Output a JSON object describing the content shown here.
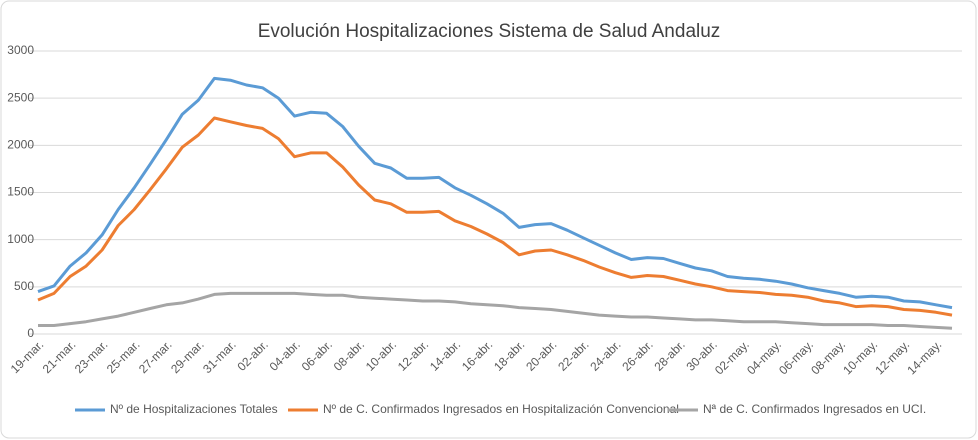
{
  "chart_data": {
    "type": "line",
    "title": "Evolución Hospitalizaciones Sistema de Salud Andaluz",
    "categories": [
      "19-mar.",
      null,
      "21-mar.",
      null,
      "23-mar.",
      null,
      "25-mar.",
      null,
      "27-mar.",
      null,
      "29-mar.",
      null,
      "31-mar.",
      null,
      "02-abr.",
      null,
      "04-abr.",
      null,
      "06-abr.",
      null,
      "08-abr.",
      null,
      "10-abr.",
      null,
      "12-abr.",
      null,
      "14-abr.",
      null,
      "16-abr.",
      null,
      "18-abr.",
      null,
      "20-abr.",
      null,
      "22-abr.",
      null,
      "24-abr.",
      null,
      "26-abr.",
      null,
      "28-abr.",
      null,
      "30-abr.",
      null,
      "02-may.",
      null,
      "04-may.",
      null,
      "06-may.",
      null,
      "08-may.",
      null,
      "10-may.",
      null,
      "12-may.",
      null,
      "14-may.",
      null
    ],
    "series": [
      {
        "name": "Nº de Hospitalizaciones Totales",
        "color": "#5b9bd5",
        "values": [
          450,
          510,
          720,
          860,
          1050,
          1320,
          1550,
          1800,
          2060,
          2330,
          2480,
          2710,
          2690,
          2640,
          2610,
          2500,
          2310,
          2350,
          2340,
          2200,
          1990,
          1810,
          1760,
          1650,
          1650,
          1660,
          1550,
          1470,
          1380,
          1280,
          1130,
          1160,
          1170,
          1100,
          1020,
          940,
          860,
          790,
          810,
          800,
          750,
          700,
          670,
          610,
          590,
          580,
          560,
          530,
          490,
          460,
          430,
          390,
          400,
          390,
          350,
          340,
          310,
          280
        ]
      },
      {
        "name": "Nº de C. Confirmados Ingresados en Hospitalización Convencional",
        "color": "#ed7d31",
        "values": [
          360,
          430,
          610,
          720,
          890,
          1150,
          1320,
          1530,
          1750,
          1980,
          2110,
          2290,
          2250,
          2210,
          2180,
          2070,
          1880,
          1920,
          1920,
          1770,
          1580,
          1420,
          1380,
          1290,
          1290,
          1300,
          1200,
          1140,
          1060,
          970,
          840,
          880,
          890,
          840,
          780,
          710,
          650,
          600,
          620,
          610,
          570,
          530,
          500,
          460,
          450,
          440,
          420,
          410,
          390,
          350,
          330,
          290,
          300,
          290,
          260,
          250,
          230,
          200
        ]
      },
      {
        "name": "Nª de C. Confirmados Ingresados en UCI.",
        "color": "#a5a5a5",
        "values": [
          90,
          90,
          110,
          130,
          160,
          190,
          230,
          270,
          310,
          330,
          370,
          420,
          430,
          430,
          430,
          430,
          430,
          420,
          410,
          410,
          390,
          380,
          370,
          360,
          350,
          350,
          340,
          320,
          310,
          300,
          280,
          270,
          260,
          240,
          220,
          200,
          190,
          180,
          180,
          170,
          160,
          150,
          150,
          140,
          130,
          130,
          130,
          120,
          110,
          100,
          100,
          100,
          100,
          90,
          90,
          80,
          70,
          60
        ]
      }
    ],
    "ylim": [
      0,
      3000
    ],
    "yticks": [
      0,
      500,
      1000,
      1500,
      2000,
      2500,
      3000
    ],
    "grid": true,
    "legend": "bottom"
  }
}
